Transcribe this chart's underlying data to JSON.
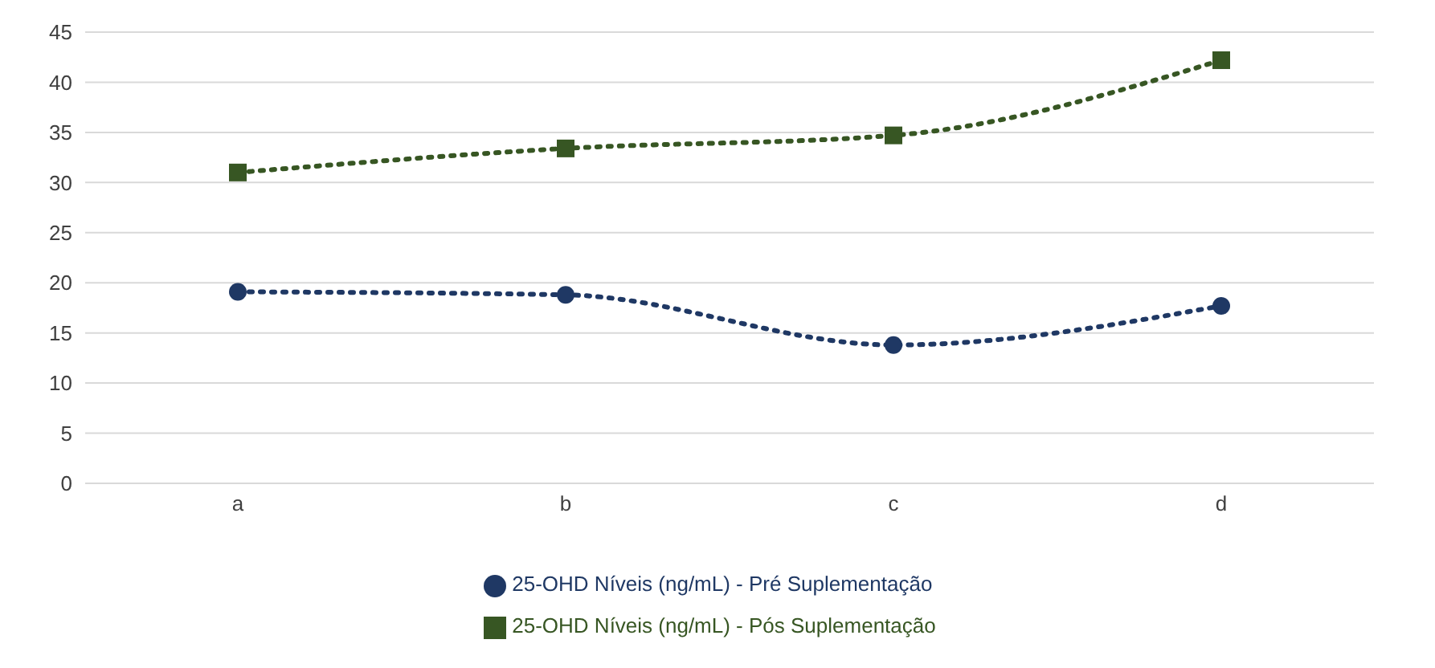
{
  "chart_data": {
    "type": "line",
    "categories": [
      "a",
      "b",
      "c",
      "d"
    ],
    "series": [
      {
        "name": "25-OHD Níveis (ng/mL) - Pré Suplementação",
        "color": "#1f3864",
        "marker": "circle",
        "values": [
          19.1,
          18.8,
          13.8,
          17.7
        ]
      },
      {
        "name": "25-OHD Níveis (ng/mL) - Pós Suplementação",
        "color": "#375623",
        "marker": "square",
        "values": [
          31.0,
          33.4,
          34.7,
          42.2
        ]
      }
    ],
    "ylim": [
      0,
      45
    ],
    "yticks": [
      0,
      5,
      10,
      15,
      20,
      25,
      30,
      35,
      40,
      45
    ],
    "grid": "y",
    "legend": "bottom",
    "line_style": "dotted"
  }
}
